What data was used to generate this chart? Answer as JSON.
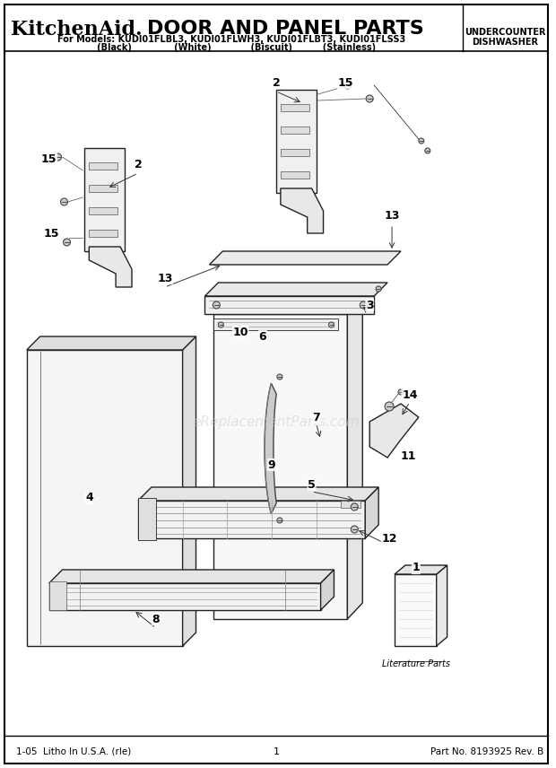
{
  "title_brand": "KitchenAid.",
  "title_main": "DOOR AND PANEL PARTS",
  "subtitle_line1": "For Models: KUDI01FLBL3, KUDI01FLWH3, KUDI01FLBT3, KUDI01FLSS3",
  "subtitle_line2": "   (Black)              (White)             (Biscuit)          (Stainless)",
  "top_right_line1": "UNDERCOUNTER",
  "top_right_line2": "DISHWASHER",
  "footer_left": "1-05  Litho In U.S.A. (rle)",
  "footer_center": "1",
  "footer_right": "Part No. 8193925 Rev. B",
  "watermark": "eReplacementParts.com",
  "bg_color": "#ffffff",
  "border_color": "#000000",
  "text_color": "#000000"
}
